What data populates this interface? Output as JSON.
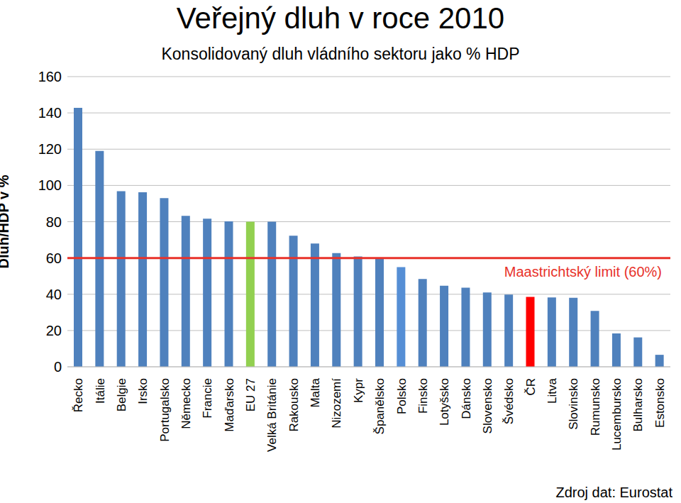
{
  "chart_data": {
    "type": "bar",
    "title": "Veřejný dluh v roce 2010",
    "subtitle": "Konsolidovaný dluh vládního sektoru jako % HDP",
    "y_label": "Dluh/HDP  v %",
    "source": "Zdroj dat: Eurostat",
    "categories": [
      "Řecko",
      "Itálie",
      "Belgie",
      "Irsko",
      "Portugalsko",
      "Německo",
      "Francie",
      "Maďarsko",
      "EU 27",
      "Velká Británie",
      "Rakousko",
      "Malta",
      "Nizozemí",
      "Kypr",
      "Španělsko",
      "Polsko",
      "Finsko",
      "Lotyšsko",
      "Dánsko",
      "Slovensko",
      "Švédsko",
      "ČR",
      "Litva",
      "Slovinsko",
      "Rumunsko",
      "Lucembursko",
      "Bulharsko",
      "Estonsko"
    ],
    "values": [
      142.8,
      119,
      96.8,
      96.2,
      93,
      83.2,
      81.7,
      80.2,
      80,
      80,
      72.3,
      68,
      62.7,
      60.8,
      60.1,
      55,
      48.4,
      44.7,
      43.6,
      41,
      39.8,
      38.5,
      38.2,
      38,
      30.8,
      18.4,
      16.2,
      6.6
    ],
    "colors": [
      "#4f81bd",
      "#4f81bd",
      "#4f81bd",
      "#4f81bd",
      "#4f81bd",
      "#4f81bd",
      "#4f81bd",
      "#4f81bd",
      "#92d050",
      "#4f81bd",
      "#4f81bd",
      "#4f81bd",
      "#4f81bd",
      "#4f81bd",
      "#4f81bd",
      "#558ed5",
      "#4f81bd",
      "#4f81bd",
      "#4f81bd",
      "#4f81bd",
      "#4f81bd",
      "#ff0000",
      "#4f81bd",
      "#4f81bd",
      "#4f81bd",
      "#4f81bd",
      "#4f81bd",
      "#4f81bd"
    ],
    "ylim": [
      0,
      160
    ],
    "yticks": [
      0,
      20,
      40,
      60,
      80,
      100,
      120,
      140,
      160
    ],
    "grid": true,
    "annotations": [
      {
        "text": "Maastrichtský limit (60%)",
        "y": 60,
        "color": "#e8322a"
      }
    ]
  }
}
